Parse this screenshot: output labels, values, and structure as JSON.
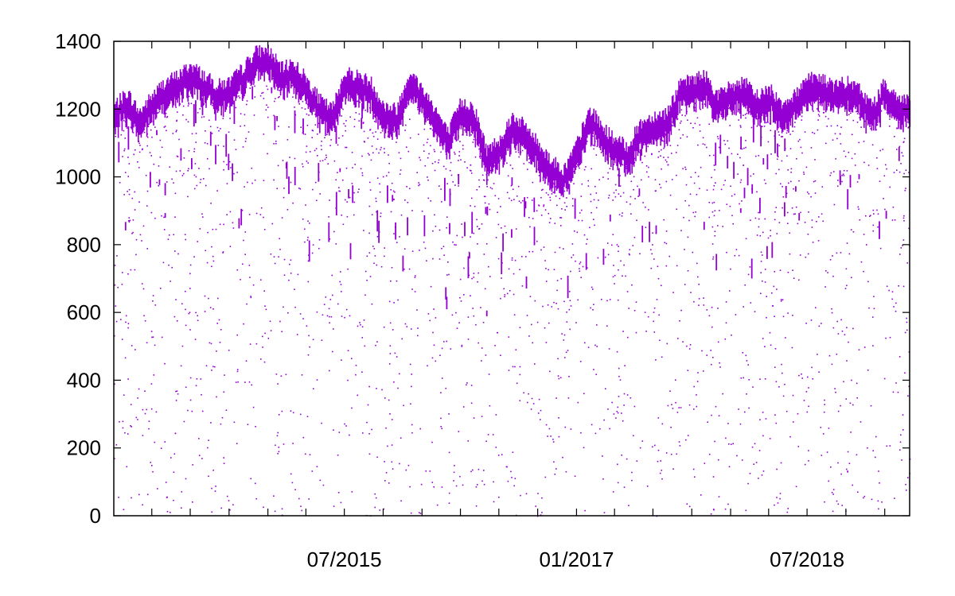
{
  "chart_data": {
    "type": "scatter",
    "title": "",
    "xlabel": "",
    "ylabel": "",
    "color": "#9400d3",
    "grid": false,
    "legend": "none",
    "xlim": [
      "2014-01-01",
      "2019-03-01"
    ],
    "ylim": [
      0,
      1400
    ],
    "yticks": [
      0,
      200,
      400,
      600,
      800,
      1000,
      1200,
      1400
    ],
    "ytick_labels": [
      "0",
      "200",
      "400",
      "600",
      "800",
      "1000",
      "1200",
      "1400"
    ],
    "xticks": [
      "2015-07-01",
      "2017-01-01",
      "2018-07-01"
    ],
    "xtick_labels": [
      "07/2015",
      "01/2017",
      "07/2018"
    ],
    "x_minor_ticks": [
      "2014-04-01",
      "2014-07-01",
      "2014-10-01",
      "2015-01-01",
      "2015-04-01",
      "2015-07-01",
      "2015-10-01",
      "2016-01-01",
      "2016-04-01",
      "2016-07-01",
      "2016-10-01",
      "2017-01-01",
      "2017-04-01",
      "2017-07-01",
      "2017-10-01",
      "2018-01-01",
      "2018-04-01",
      "2018-07-01",
      "2018-10-01",
      "2019-01-01"
    ],
    "upper_envelope": [
      [
        "2014-01-01",
        1210
      ],
      [
        "2014-02-01",
        1250
      ],
      [
        "2014-03-01",
        1190
      ],
      [
        "2014-04-01",
        1240
      ],
      [
        "2014-05-01",
        1280
      ],
      [
        "2014-06-01",
        1300
      ],
      [
        "2014-07-01",
        1330
      ],
      [
        "2014-08-01",
        1300
      ],
      [
        "2014-09-01",
        1270
      ],
      [
        "2014-10-01",
        1280
      ],
      [
        "2014-11-01",
        1320
      ],
      [
        "2014-12-01",
        1370
      ],
      [
        "2015-01-01",
        1375
      ],
      [
        "2015-02-01",
        1320
      ],
      [
        "2015-03-01",
        1340
      ],
      [
        "2015-04-01",
        1290
      ],
      [
        "2015-05-01",
        1230
      ],
      [
        "2015-06-01",
        1200
      ],
      [
        "2015-07-01",
        1310
      ],
      [
        "2015-08-01",
        1300
      ],
      [
        "2015-09-01",
        1280
      ],
      [
        "2015-10-01",
        1210
      ],
      [
        "2015-11-01",
        1200
      ],
      [
        "2015-12-01",
        1310
      ],
      [
        "2016-01-01",
        1260
      ],
      [
        "2016-02-01",
        1200
      ],
      [
        "2016-03-01",
        1130
      ],
      [
        "2016-04-01",
        1220
      ],
      [
        "2016-05-01",
        1210
      ],
      [
        "2016-06-01",
        1080
      ],
      [
        "2016-07-01",
        1110
      ],
      [
        "2016-08-01",
        1180
      ],
      [
        "2016-09-01",
        1150
      ],
      [
        "2016-10-01",
        1100
      ],
      [
        "2016-11-01",
        1050
      ],
      [
        "2016-12-01",
        1020
      ],
      [
        "2017-01-01",
        1100
      ],
      [
        "2017-02-01",
        1200
      ],
      [
        "2017-03-01",
        1150
      ],
      [
        "2017-04-01",
        1110
      ],
      [
        "2017-05-01",
        1090
      ],
      [
        "2017-06-01",
        1160
      ],
      [
        "2017-07-01",
        1180
      ],
      [
        "2017-08-01",
        1190
      ],
      [
        "2017-09-01",
        1270
      ],
      [
        "2017-10-01",
        1290
      ],
      [
        "2017-11-01",
        1300
      ],
      [
        "2017-12-01",
        1240
      ],
      [
        "2018-01-01",
        1270
      ],
      [
        "2018-02-01",
        1280
      ],
      [
        "2018-03-01",
        1240
      ],
      [
        "2018-04-01",
        1260
      ],
      [
        "2018-05-01",
        1220
      ],
      [
        "2018-06-01",
        1240
      ],
      [
        "2018-07-01",
        1300
      ],
      [
        "2018-08-01",
        1290
      ],
      [
        "2018-09-01",
        1270
      ],
      [
        "2018-10-01",
        1280
      ],
      [
        "2018-11-01",
        1260
      ],
      [
        "2018-12-01",
        1210
      ],
      [
        "2019-01-01",
        1280
      ],
      [
        "2019-02-01",
        1230
      ]
    ],
    "band_thickness": 60
  }
}
